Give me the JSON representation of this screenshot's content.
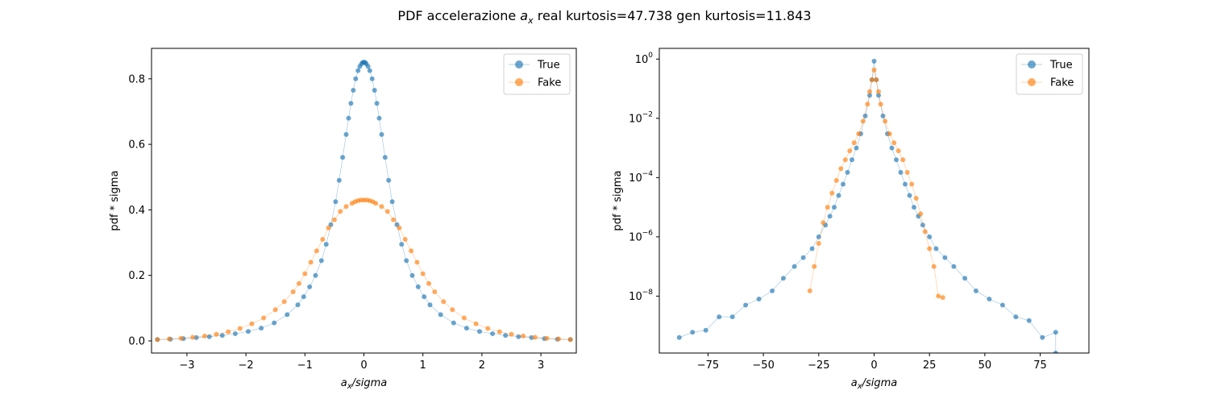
{
  "figure": {
    "title_prefix": "PDF accelerazione ",
    "title_sym": "a",
    "title_sub": "x",
    "title_suffix": " real kurtosis=47.738    gen kurtosis=11.843"
  },
  "colors": {
    "true": "#1f77b4",
    "fake": "#ff7f0e"
  },
  "chart_data": [
    {
      "type": "scatter",
      "scale": "linear",
      "xlabel": {
        "sym": "a",
        "sub": "x",
        "rest": "/sigma"
      },
      "ylabel": "pdf * sigma",
      "xlim": [
        -3.6,
        3.6
      ],
      "ylim": [
        -0.037,
        0.893
      ],
      "xticks": [
        -3,
        -2,
        -1,
        0,
        1,
        2,
        3
      ],
      "xtick_labels": [
        "−3",
        "−2",
        "−1",
        "0",
        "1",
        "2",
        "3"
      ],
      "yticks": [
        0.0,
        0.2,
        0.4,
        0.6,
        0.8
      ],
      "ytick_labels": [
        "0.0",
        "0.2",
        "0.4",
        "0.6",
        "0.8"
      ],
      "legend": {
        "position": "top-right",
        "entries": [
          "True",
          "Fake"
        ]
      },
      "series": [
        {
          "name": "True",
          "x": [
            -3.5,
            -3.28,
            -3.06,
            -2.84,
            -2.62,
            -2.4,
            -2.18,
            -1.96,
            -1.74,
            -1.52,
            -1.3,
            -1.12,
            -1.02,
            -0.92,
            -0.82,
            -0.72,
            -0.64,
            -0.56,
            -0.48,
            -0.42,
            -0.36,
            -0.3,
            -0.26,
            -0.22,
            -0.18,
            -0.14,
            -0.1,
            -0.07,
            -0.04,
            -0.02,
            0.0,
            0.02,
            0.04,
            0.07,
            0.1,
            0.14,
            0.18,
            0.22,
            0.26,
            0.3,
            0.36,
            0.42,
            0.48,
            0.56,
            0.64,
            0.72,
            0.82,
            0.92,
            1.02,
            1.12,
            1.3,
            1.52,
            1.74,
            1.96,
            2.18,
            2.4,
            2.62,
            2.84,
            3.06,
            3.28,
            3.5
          ],
          "y": [
            0.004,
            0.005,
            0.007,
            0.01,
            0.013,
            0.017,
            0.022,
            0.029,
            0.039,
            0.055,
            0.08,
            0.11,
            0.135,
            0.165,
            0.2,
            0.245,
            0.295,
            0.355,
            0.425,
            0.49,
            0.56,
            0.63,
            0.68,
            0.725,
            0.765,
            0.8,
            0.825,
            0.838,
            0.846,
            0.85,
            0.851,
            0.85,
            0.846,
            0.838,
            0.825,
            0.8,
            0.765,
            0.725,
            0.68,
            0.63,
            0.56,
            0.49,
            0.425,
            0.355,
            0.295,
            0.245,
            0.2,
            0.165,
            0.135,
            0.11,
            0.08,
            0.055,
            0.039,
            0.029,
            0.022,
            0.017,
            0.013,
            0.01,
            0.007,
            0.005,
            0.004
          ]
        },
        {
          "name": "Fake",
          "x": [
            -3.5,
            -3.3,
            -3.1,
            -2.9,
            -2.7,
            -2.5,
            -2.3,
            -2.1,
            -1.9,
            -1.7,
            -1.5,
            -1.35,
            -1.2,
            -1.1,
            -1.0,
            -0.9,
            -0.8,
            -0.7,
            -0.6,
            -0.5,
            -0.4,
            -0.3,
            -0.2,
            -0.15,
            -0.1,
            -0.05,
            0.0,
            0.05,
            0.1,
            0.15,
            0.2,
            0.3,
            0.4,
            0.5,
            0.6,
            0.7,
            0.8,
            0.9,
            1.0,
            1.1,
            1.2,
            1.35,
            1.5,
            1.7,
            1.9,
            2.1,
            2.3,
            2.5,
            2.7,
            2.9,
            3.1,
            3.3,
            3.5
          ],
          "y": [
            0.004,
            0.006,
            0.008,
            0.011,
            0.015,
            0.02,
            0.028,
            0.038,
            0.052,
            0.07,
            0.095,
            0.12,
            0.15,
            0.175,
            0.205,
            0.24,
            0.275,
            0.31,
            0.345,
            0.37,
            0.395,
            0.41,
            0.42,
            0.425,
            0.428,
            0.43,
            0.43,
            0.43,
            0.428,
            0.425,
            0.42,
            0.41,
            0.395,
            0.37,
            0.345,
            0.31,
            0.275,
            0.24,
            0.205,
            0.175,
            0.15,
            0.12,
            0.095,
            0.07,
            0.052,
            0.038,
            0.028,
            0.02,
            0.015,
            0.011,
            0.008,
            0.006,
            0.004
          ]
        }
      ]
    },
    {
      "type": "scatter",
      "scale": "log",
      "xlabel": {
        "sym": "a",
        "sub": "x",
        "rest": "/sigma"
      },
      "ylabel": "pdf * sigma",
      "xlim": [
        -97,
        97
      ],
      "ylim": [
        1.2e-10,
        2.3
      ],
      "xticks": [
        -75,
        -50,
        -25,
        0,
        25,
        50,
        75
      ],
      "xtick_labels": [
        "−75",
        "−50",
        "−25",
        "0",
        "25",
        "50",
        "75"
      ],
      "yticks": [
        1e-08,
        1e-06,
        0.0001,
        0.01,
        1
      ],
      "ytick_exponents": [
        "−8",
        "−6",
        "−4",
        "−2",
        "0"
      ],
      "legend": {
        "position": "top-right",
        "entries": [
          "True",
          "Fake"
        ]
      },
      "series": [
        {
          "name": "True",
          "x": [
            -88,
            -82,
            -76,
            -70,
            -64,
            -58,
            -52,
            -46,
            -41,
            -36,
            -32,
            -28,
            -25,
            -22,
            -20,
            -18,
            -16,
            -14,
            -12,
            -10,
            -8,
            -6,
            -4,
            -2,
            -1,
            0,
            1,
            2,
            4,
            6,
            8,
            10,
            12,
            14,
            16,
            18,
            20,
            22,
            25,
            28,
            32,
            36,
            41,
            46,
            52,
            58,
            64,
            70,
            76,
            82,
            82
          ],
          "y": [
            4e-10,
            6e-10,
            7e-10,
            2e-09,
            2e-09,
            5e-09,
            8e-09,
            1.5e-08,
            4e-08,
            1e-07,
            2e-07,
            4e-07,
            1e-06,
            2.5e-06,
            5e-06,
            1e-05,
            2.5e-05,
            6e-05,
            0.00015,
            0.0004,
            0.001,
            0.003,
            0.012,
            0.06,
            0.2,
            0.85,
            0.2,
            0.06,
            0.012,
            0.003,
            0.001,
            0.0004,
            0.00015,
            6e-05,
            2.5e-05,
            1e-05,
            5e-06,
            2.5e-06,
            1e-06,
            4e-07,
            2e-07,
            1e-07,
            4e-08,
            1.5e-08,
            8e-09,
            5e-09,
            2e-09,
            1.5e-09,
            4e-10,
            6e-10,
            1.2e-10
          ]
        },
        {
          "name": "Fake",
          "x": [
            -29,
            -27,
            -25,
            -23,
            -21,
            -19,
            -17,
            -15,
            -13,
            -11,
            -9,
            -7,
            -5,
            -3,
            -2,
            -1,
            0,
            1,
            2,
            3,
            5,
            7,
            9,
            11,
            13,
            15,
            17,
            19,
            21,
            23,
            25,
            27,
            29,
            31
          ],
          "y": [
            1.5e-08,
            1e-07,
            6e-07,
            3e-06,
            1e-05,
            3e-05,
            8e-05,
            0.0002,
            0.0004,
            0.0008,
            0.0015,
            0.003,
            0.008,
            0.03,
            0.08,
            0.2,
            0.43,
            0.2,
            0.08,
            0.03,
            0.008,
            0.003,
            0.0015,
            0.0008,
            0.0004,
            0.00015,
            6e-05,
            2e-05,
            6e-06,
            1.5e-06,
            4e-07,
            1e-07,
            1e-08,
            9e-09
          ]
        }
      ]
    }
  ]
}
